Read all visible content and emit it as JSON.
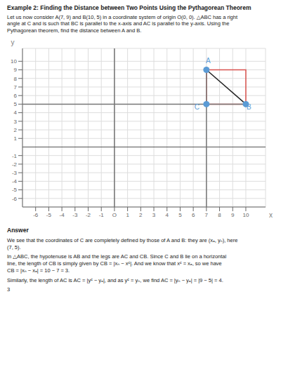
{
  "chart_data": {
    "type": "scatter",
    "title": "Example 2: Finding the Distance between Two Points Using the Pythagorean Theorem",
    "subtitle": "Let us now consider A(7, 9) and B(10, 5) in a coordinate system of origin O(0, 0). △ABC has a right\nangle at C and is such that BC is parallel to the x-axis and AC is parallel to the y-axis. Using the\nPythagorean theorem, find the distance between A and B.",
    "annotations": [
      "Answer",
      "We see that the coordinates of C are completely defined by those of A and B: they are (xₐ, yₙ), here\n(7, 5).",
      "In △ABC, the hypotenuse is AB and the legs are AC and CB. Since C and B lie on a horizontal\nline, the length of CB is simply given by CB = |xₙ − xᶜ|. And we know that xᶜ = xₐ, so we have\nCB = |xₙ − xₐ| = 10 − 7 = 3.",
      "Similarly, the length of AC is AC = |yᶜ − yₐ|, and as yᶜ = yₙ, we find AC = |yₙ − yₐ| = |9 − 5| = 4.",
      "3"
    ],
    "x_label": "x",
    "y_label": "y",
    "xlim": [
      -7,
      11.5
    ],
    "ylim": [
      -7,
      11.5
    ],
    "xticks": [
      -6,
      -5,
      -4,
      -3,
      -2,
      -1,
      {
        "value": 0,
        "label": "O"
      },
      1,
      2,
      3,
      4,
      5,
      6,
      7,
      8,
      9,
      10
    ],
    "yticks": [
      -6,
      -5,
      -4,
      -3,
      -2,
      -1,
      1,
      2,
      3,
      4,
      5,
      6,
      7,
      8,
      9,
      10
    ],
    "grid": true,
    "series": [
      {
        "type": "line",
        "color": "#D9534F",
        "x": [
          7,
          10,
          10,
          7,
          7
        ],
        "y": [
          5,
          5,
          9,
          9,
          5
        ]
      },
      {
        "type": "line",
        "color": "#777777",
        "x": [
          -7,
          10
        ],
        "y": [
          5,
          5
        ]
      },
      {
        "type": "line",
        "color": "#777777",
        "x": [
          7,
          7
        ],
        "y": [
          -7,
          9
        ]
      },
      {
        "type": "line",
        "color": "#222222",
        "x": [
          7,
          10
        ],
        "y": [
          9,
          5
        ]
      },
      {
        "type": "scatter",
        "color": "#5B9BD5",
        "x": [
          7,
          10,
          7
        ],
        "y": [
          9,
          5,
          5
        ],
        "labels": [
          "A",
          "B",
          "C"
        ]
      }
    ]
  }
}
